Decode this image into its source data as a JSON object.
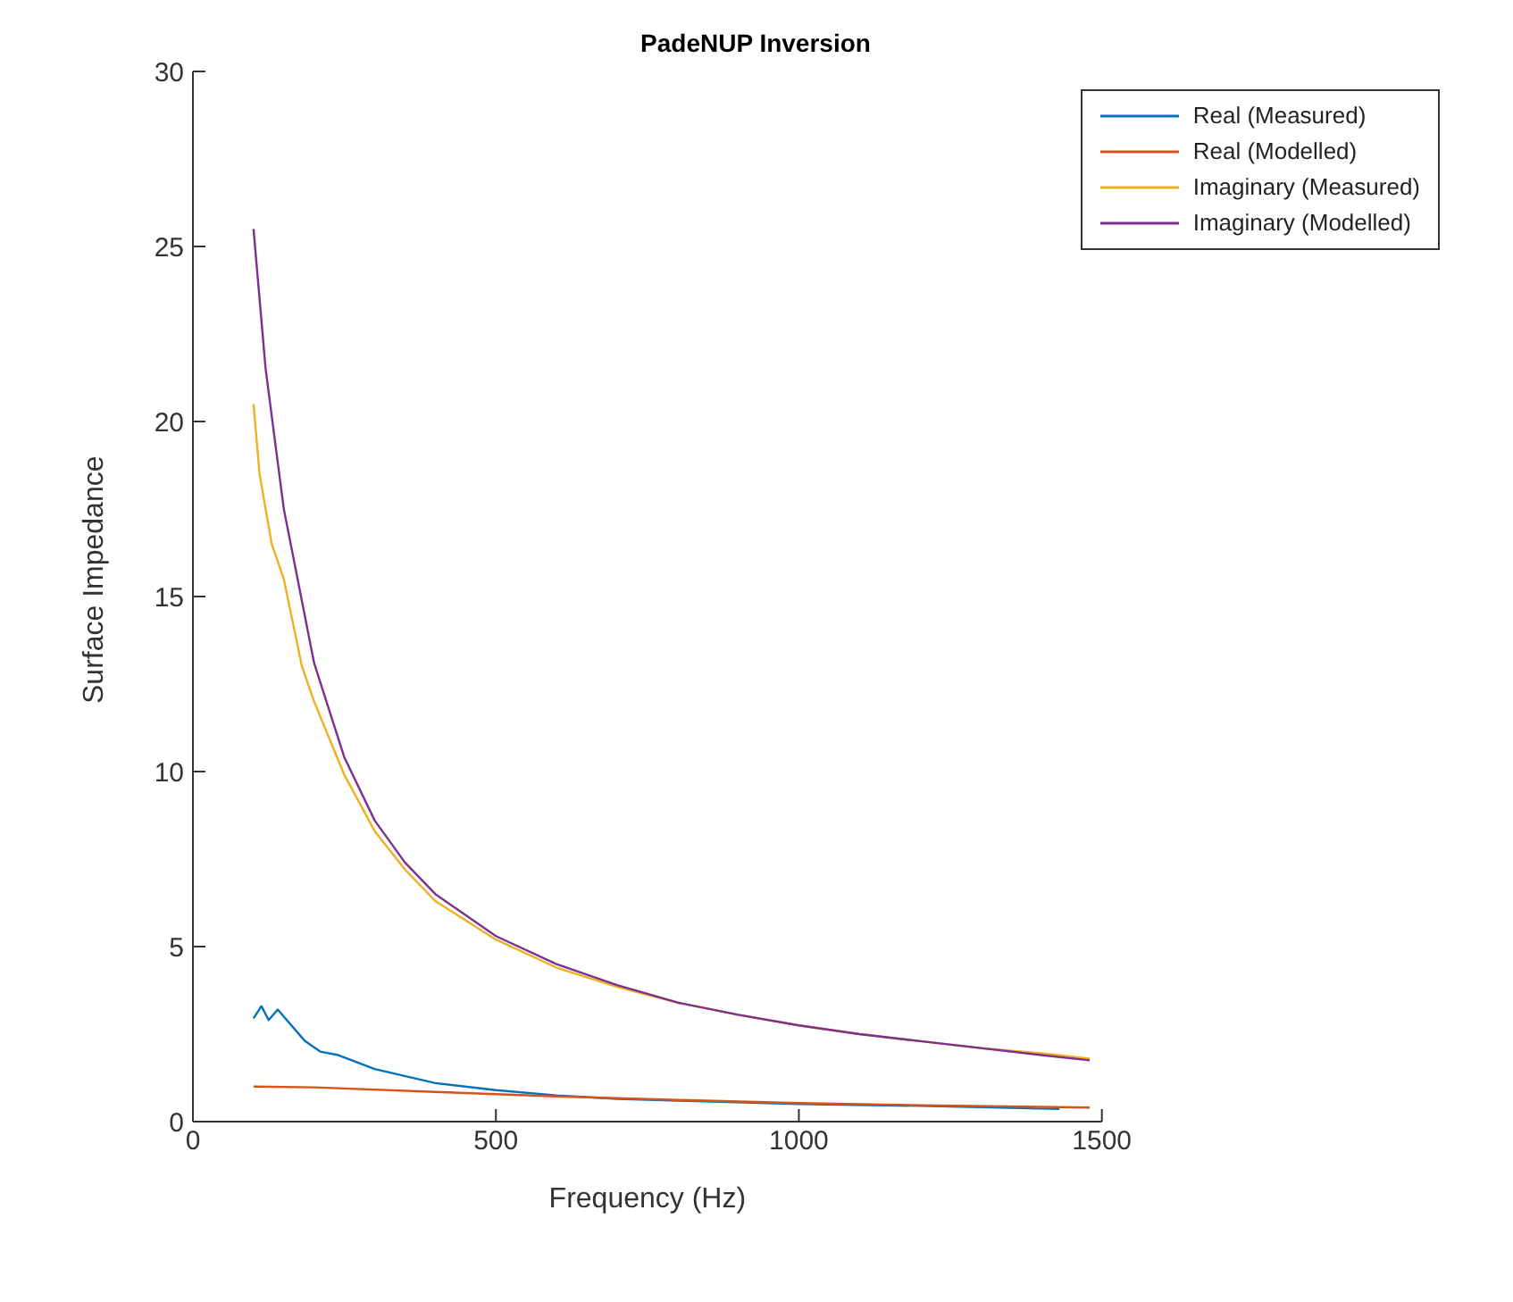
{
  "chart_data": {
    "type": "line",
    "title": "PadeNUP Inversion",
    "xlabel": "Frequency (Hz)",
    "ylabel": "Surface Impedance",
    "xlim": [
      0,
      1500
    ],
    "xticks": [
      0,
      500,
      1000,
      1500
    ],
    "ylim": [
      0,
      30
    ],
    "yticks": [
      0,
      5,
      10,
      15,
      20,
      25,
      30
    ],
    "grid": false,
    "legend": "top right",
    "line_style": "solid",
    "marker": "none",
    "series": [
      {
        "name": "Real (Measured)",
        "color": "#0072bd",
        "x": [
          100,
          113,
          125,
          140,
          160,
          185,
          210,
          240,
          300,
          400,
          500,
          600,
          700,
          800,
          1000,
          1200,
          1430
        ],
        "values": [
          2.95,
          3.3,
          2.9,
          3.2,
          2.8,
          2.3,
          2.0,
          1.9,
          1.5,
          1.1,
          0.9,
          0.75,
          0.65,
          0.6,
          0.5,
          0.45,
          0.36
        ]
      },
      {
        "name": "Real (Modelled)",
        "color": "#d95319",
        "x": [
          100,
          200,
          400,
          600,
          800,
          1000,
          1200,
          1480
        ],
        "values": [
          1.0,
          0.98,
          0.85,
          0.72,
          0.62,
          0.53,
          0.47,
          0.4
        ]
      },
      {
        "name": "Imaginary (Measured)",
        "color": "#edb120",
        "x": [
          100,
          110,
          130,
          150,
          180,
          200,
          250,
          300,
          350,
          400,
          500,
          600,
          700,
          800,
          900,
          1000,
          1100,
          1200,
          1300,
          1400,
          1480
        ],
        "values": [
          20.5,
          18.5,
          16.5,
          15.5,
          13.0,
          12.0,
          9.9,
          8.3,
          7.2,
          6.3,
          5.2,
          4.4,
          3.85,
          3.4,
          3.05,
          2.75,
          2.5,
          2.3,
          2.1,
          1.95,
          1.8
        ]
      },
      {
        "name": "Imaginary (Modelled)",
        "color": "#7e2f8e",
        "x": [
          100,
          120,
          150,
          200,
          250,
          300,
          350,
          400,
          500,
          600,
          700,
          800,
          900,
          1000,
          1100,
          1200,
          1300,
          1400,
          1480
        ],
        "values": [
          25.5,
          21.5,
          17.5,
          13.1,
          10.4,
          8.6,
          7.4,
          6.5,
          5.3,
          4.5,
          3.9,
          3.4,
          3.05,
          2.75,
          2.5,
          2.3,
          2.1,
          1.9,
          1.75
        ]
      }
    ]
  }
}
